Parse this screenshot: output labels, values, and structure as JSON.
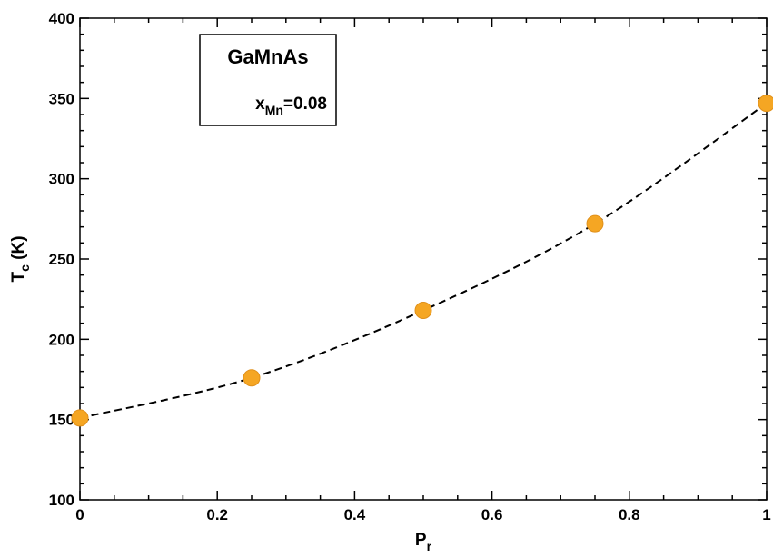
{
  "chart_data": {
    "type": "line",
    "xlabel": "P",
    "xlabel_sub": "r",
    "ylabel_main": "T",
    "ylabel_sub": "c",
    "ylabel_unit": " (K)",
    "xlim": [
      0,
      1
    ],
    "ylim": [
      100,
      400
    ],
    "x_ticks": [
      0,
      0.2,
      0.4,
      0.6,
      0.8,
      1
    ],
    "x_tick_labels": [
      "0",
      "0.2",
      "0.4",
      "0.6",
      "0.8",
      "1"
    ],
    "y_ticks": [
      100,
      150,
      200,
      250,
      300,
      350,
      400
    ],
    "y_tick_labels": [
      "100",
      "150",
      "200",
      "250",
      "300",
      "350",
      "400"
    ],
    "grid": false,
    "legend": {
      "title": "GaMnAs",
      "sub_main": "x",
      "sub_script": "Mn",
      "sub_value": "=0.08",
      "placement": "top-left"
    },
    "series": [
      {
        "x": [
          0,
          0.25,
          0.5,
          0.75,
          1
        ],
        "y": [
          151,
          176,
          218,
          272,
          347
        ],
        "marker_color": "#f5a623",
        "line_color": "#000000",
        "line_style": "dashed"
      }
    ]
  }
}
